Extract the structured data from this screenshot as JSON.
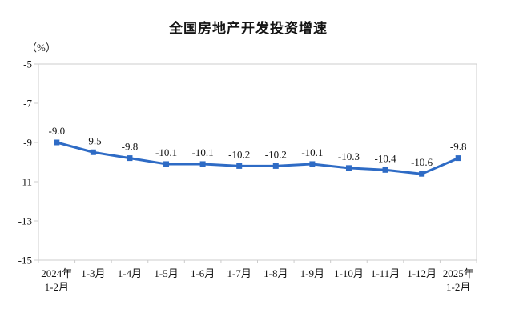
{
  "header": {
    "title": "全国房地产开发投资增速"
  },
  "chart_data": {
    "type": "line",
    "title": "全国房地产开发投资增速",
    "ylabel": "（%）",
    "xlabel": "",
    "categories": [
      "2024年\n1-2月",
      "1-3月",
      "1-4月",
      "1-5月",
      "1-6月",
      "1-7月",
      "1-8月",
      "1-9月",
      "1-10月",
      "1-11月",
      "1-12月",
      "2025年\n1-2月"
    ],
    "values": [
      -9.0,
      -9.5,
      -9.8,
      -10.1,
      -10.1,
      -10.2,
      -10.2,
      -10.1,
      -10.3,
      -10.4,
      -10.6,
      -9.8
    ],
    "point_labels": [
      "-9.0",
      "-9.5",
      "-9.8",
      "-10.1",
      "-10.1",
      "-10.2",
      "-10.2",
      "-10.1",
      "-10.3",
      "-10.4",
      "-10.6",
      "-9.8"
    ],
    "ylim": [
      -15,
      -5
    ],
    "yticks": [
      -5,
      -7,
      -9,
      -11,
      -13,
      -15
    ],
    "grid": false,
    "legend": "none",
    "line_color": "#2E6BC5",
    "axis_color": "#CCCCCC",
    "label_color": "#151515"
  }
}
